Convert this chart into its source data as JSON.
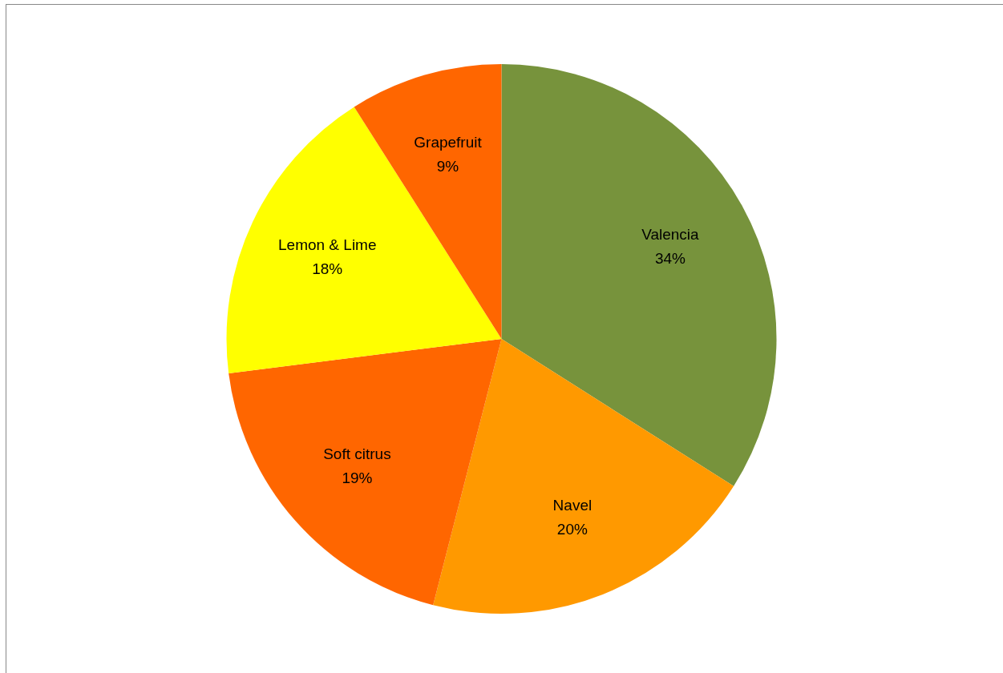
{
  "chart_data": {
    "type": "pie",
    "categories": [
      "Valencia",
      "Navel",
      "Soft citrus",
      "Lemon & Lime",
      "Grapefruit"
    ],
    "values": [
      34,
      20,
      19,
      18,
      9
    ],
    "colors": [
      "#77933c",
      "#ff9900",
      "#ff6600",
      "#ffff00",
      "#ff6600"
    ],
    "value_labels": [
      "34%",
      "20%",
      "19%",
      "18%",
      "9%"
    ],
    "legend": false
  }
}
